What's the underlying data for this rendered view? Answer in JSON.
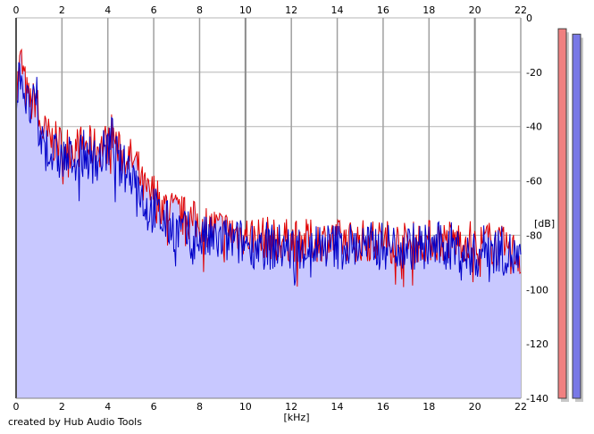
{
  "chart_data": {
    "type": "area",
    "xlabel": "[kHz]",
    "ylabel": "[dB]",
    "xlim": [
      0,
      22
    ],
    "ylim": [
      -140,
      0
    ],
    "x_ticks": [
      "0",
      "2",
      "4",
      "6",
      "8",
      "10",
      "12",
      "14",
      "16",
      "18",
      "20",
      "22"
    ],
    "y_ticks": [
      "0",
      "-20",
      "-40",
      "-60",
      "-80",
      "-100",
      "-120",
      "-140"
    ],
    "grid": true,
    "colors": {
      "fill": "#c8c8ff",
      "channel_red": "#e00000",
      "channel_blue": "#0000c8",
      "grid": "#b4b4b4",
      "meter_red": "#f08080",
      "meter_blue": "#7878e6"
    },
    "series": [
      {
        "color": "#e00000",
        "x": [
          0,
          0.1,
          0.2,
          0.3,
          0.5,
          0.7,
          0.9,
          1.0,
          1.5,
          2.0,
          2.5,
          3.0,
          3.5,
          4.0,
          4.2,
          4.5,
          5.0,
          5.3,
          5.5,
          5.8,
          6.0,
          6.3,
          6.6,
          7.0,
          7.5,
          8.0,
          8.5,
          9.0,
          10.0,
          11.0,
          12.0,
          13.0,
          14.0,
          15.0,
          16.0,
          17.0,
          18.0,
          19.0,
          19.8,
          20.0,
          20.5,
          21.0,
          21.5,
          22.0
        ],
        "values": [
          -28,
          -22,
          -15,
          -20,
          -30,
          -32,
          -28,
          -40,
          -45,
          -47,
          -48,
          -47,
          -48,
          -46,
          -42,
          -50,
          -52,
          -55,
          -62,
          -66,
          -64,
          -68,
          -70,
          -72,
          -74,
          -76,
          -77,
          -78,
          -80,
          -81,
          -82,
          -82,
          -82,
          -82,
          -82,
          -83,
          -82,
          -82,
          -82,
          -85,
          -82,
          -84,
          -85,
          -88
        ]
      },
      {
        "color": "#0000c8",
        "x": [
          0,
          0.1,
          0.2,
          0.3,
          0.5,
          0.7,
          0.9,
          1.0,
          1.5,
          2.0,
          2.5,
          3.0,
          3.5,
          4.0,
          4.2,
          4.5,
          5.0,
          5.3,
          5.5,
          5.8,
          6.0,
          6.3,
          6.6,
          7.0,
          7.5,
          8.0,
          8.5,
          9.0,
          10.0,
          11.0,
          12.0,
          13.0,
          14.0,
          15.0,
          16.0,
          17.0,
          18.0,
          19.0,
          19.8,
          20.0,
          20.5,
          21.0,
          21.5,
          22.0
        ],
        "values": [
          -35,
          -25,
          -18,
          -24,
          -33,
          -34,
          -30,
          -44,
          -50,
          -52,
          -52,
          -50,
          -53,
          -48,
          -44,
          -55,
          -56,
          -60,
          -66,
          -72,
          -70,
          -74,
          -76,
          -78,
          -80,
          -81,
          -82,
          -82,
          -83,
          -84,
          -85,
          -84,
          -84,
          -84,
          -84,
          -84,
          -84,
          -84,
          -88,
          -88,
          -84,
          -85,
          -87,
          -90
        ]
      }
    ],
    "meters": {
      "left": -4,
      "right": -6
    }
  },
  "footer": {
    "credit": "created by Hub Audio Tools"
  }
}
